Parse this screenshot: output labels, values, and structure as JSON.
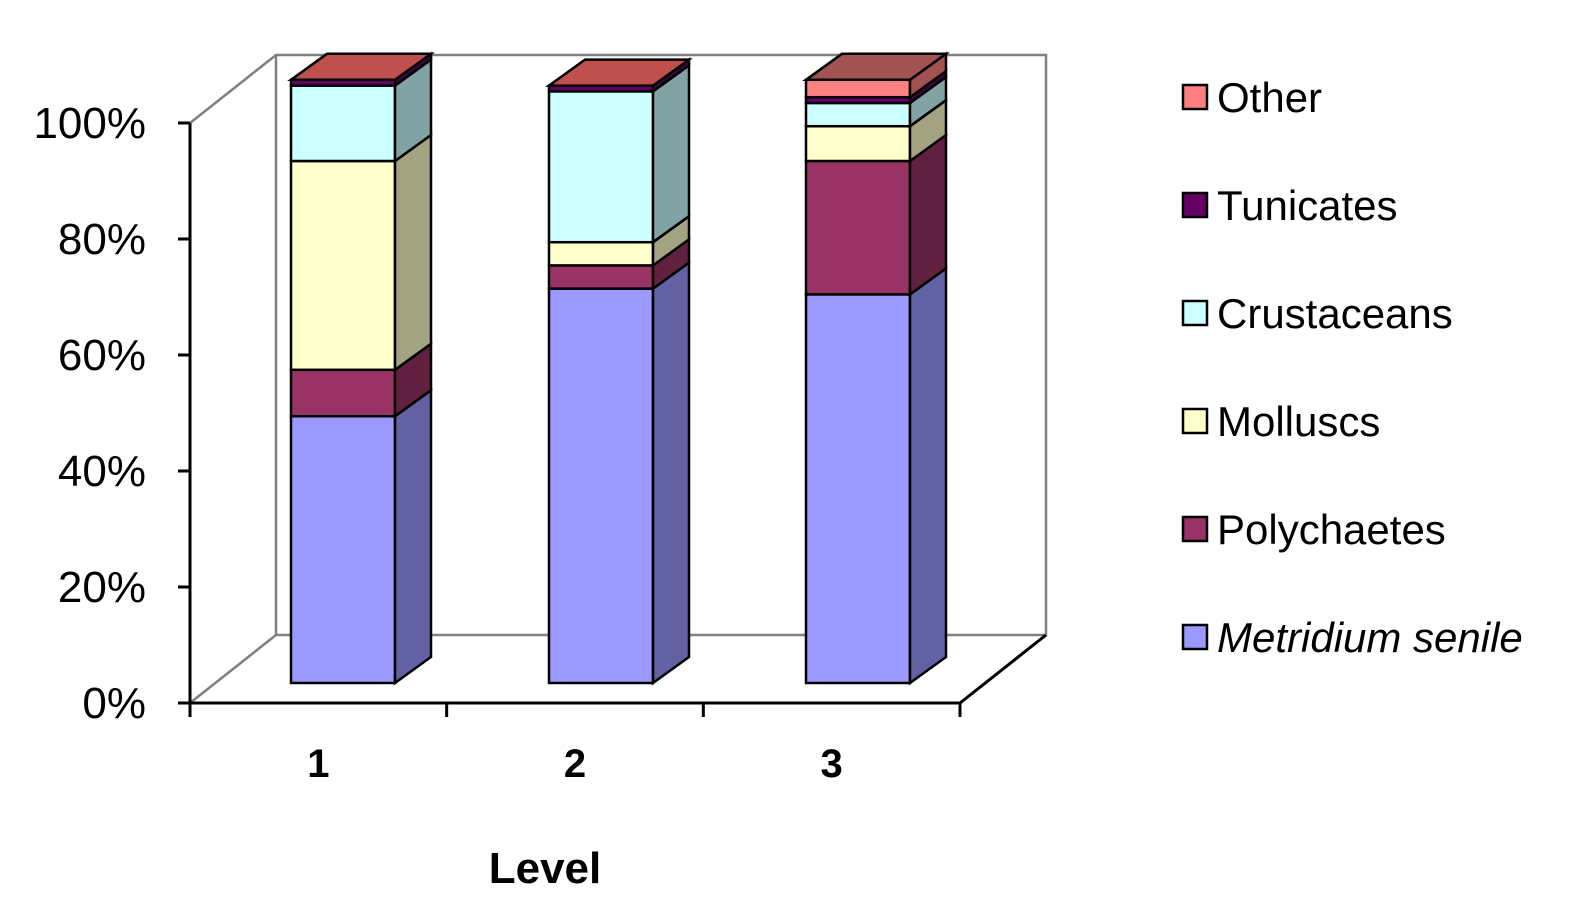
{
  "chart_data": {
    "type": "bar",
    "stacked": true,
    "percent": true,
    "three_d": true,
    "categories": [
      "1",
      "2",
      "3"
    ],
    "xlabel": "Level",
    "ylabel": "",
    "ylim": [
      0,
      100
    ],
    "yticks": [
      "0%",
      "20%",
      "40%",
      "60%",
      "80%",
      "100%"
    ],
    "grid": false,
    "legend_position": "right",
    "series": [
      {
        "name": "Metridium senile",
        "italic": true,
        "color": "#9999ff",
        "side_color": "#6161a3",
        "values": [
          46,
          68,
          67
        ]
      },
      {
        "name": "Polychaetes",
        "italic": false,
        "color": "#993366",
        "side_color": "#612040",
        "values": [
          8,
          4,
          23
        ]
      },
      {
        "name": "Molluscs",
        "italic": false,
        "color": "#ffffcc",
        "side_color": "#a3a382",
        "values": [
          36,
          4,
          6
        ]
      },
      {
        "name": "Crustaceans",
        "italic": false,
        "color": "#ccffff",
        "side_color": "#82a3a3",
        "values": [
          13,
          26,
          4
        ]
      },
      {
        "name": "Tunicates",
        "italic": false,
        "color": "#660066",
        "side_color": "#410041",
        "values": [
          1,
          1,
          1
        ]
      },
      {
        "name": "Other",
        "italic": false,
        "color": "#ff8080",
        "side_color": "#a35252",
        "values": [
          0,
          0,
          3
        ]
      }
    ]
  }
}
